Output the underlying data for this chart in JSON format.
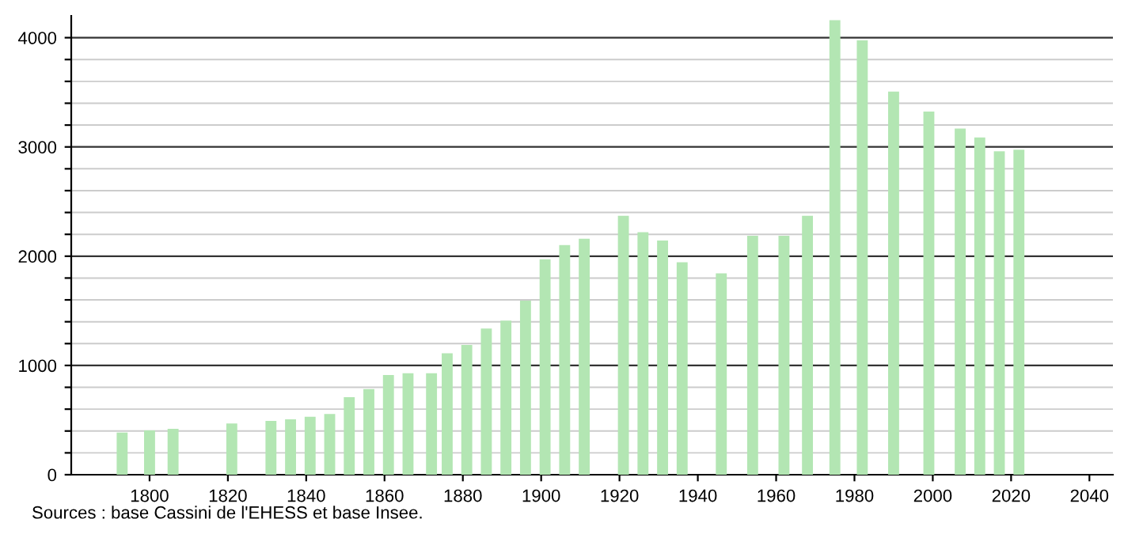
{
  "chart_data": {
    "type": "bar",
    "x": [
      1793,
      1800,
      1806,
      1821,
      1831,
      1836,
      1841,
      1846,
      1851,
      1856,
      1861,
      1866,
      1872,
      1876,
      1881,
      1886,
      1891,
      1896,
      1901,
      1906,
      1911,
      1921,
      1926,
      1931,
      1936,
      1946,
      1954,
      1962,
      1968,
      1975,
      1982,
      1990,
      1999,
      2007,
      2012,
      2017,
      2022
    ],
    "values": [
      386,
      406,
      420,
      469,
      493,
      507,
      531,
      556,
      710,
      783,
      913,
      928,
      928,
      1111,
      1188,
      1338,
      1411,
      1594,
      1971,
      2101,
      2159,
      2370,
      2220,
      2143,
      1944,
      1843,
      2186,
      2186,
      2370,
      4160,
      3976,
      3507,
      3323,
      3168,
      3086,
      2960,
      2975
    ],
    "color": "#b3e6b3",
    "xlim": [
      1780,
      2046
    ],
    "xticks": [
      1800,
      1820,
      1840,
      1860,
      1880,
      1900,
      1920,
      1940,
      1960,
      1980,
      2000,
      2020,
      2040
    ],
    "ylim": [
      0,
      4200
    ],
    "yticks": [
      0,
      {
        "value": 200,
        "label": null
      },
      {
        "value": 400,
        "label": null
      },
      {
        "value": 600,
        "label": null
      },
      {
        "value": 800,
        "label": null
      },
      1000,
      {
        "value": 1200,
        "label": null
      },
      {
        "value": 1400,
        "label": null
      },
      {
        "value": 1600,
        "label": null
      },
      {
        "value": 1800,
        "label": null
      },
      2000,
      {
        "value": 2200,
        "label": null
      },
      {
        "value": 2400,
        "label": null
      },
      {
        "value": 2600,
        "label": null
      },
      {
        "value": 2800,
        "label": null
      },
      3000,
      {
        "value": 3200,
        "label": null
      },
      {
        "value": 3400,
        "label": null
      },
      {
        "value": 3600,
        "label": null
      },
      {
        "value": 3800,
        "label": null
      },
      4000
    ],
    "grid": "y",
    "annotations": [
      "Sources : base Cassini de l'EHESS et base Insee."
    ]
  }
}
